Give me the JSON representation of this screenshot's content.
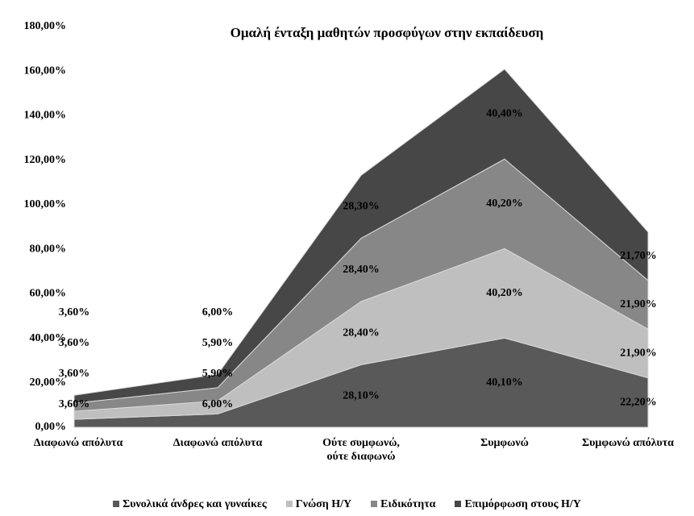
{
  "chart_data": {
    "type": "area",
    "title": "Ομαλή ένταξη μαθητών προσφύγων στην εκπαίδευση",
    "categories": [
      "Διαφωνώ απόλυτα",
      "Διαφωνώ απόλυτα",
      "Ούτε συμφωνώ, ούτε διαφωνώ",
      "Συμφωνώ",
      "Συμφωνώ απόλυτα"
    ],
    "stacked": true,
    "series": [
      {
        "name": "Συνολικά άνδρες και γυναίκες",
        "color": "#595959",
        "values": [
          3.6,
          6.0,
          28.1,
          40.1,
          22.2
        ],
        "value_labels": [
          "3,60%",
          "6,00%",
          "28,10%",
          "40,10%",
          "22,20%"
        ]
      },
      {
        "name": "Γνώση Η/Υ",
        "color": "#bfbfbf",
        "values": [
          3.6,
          5.9,
          28.4,
          40.2,
          21.9
        ],
        "value_labels": [
          "3,60%",
          "5,90%",
          "28,40%",
          "40,20%",
          "21,90%"
        ]
      },
      {
        "name": "Ειδικότητα",
        "color": "#878787",
        "values": [
          3.6,
          5.9,
          28.4,
          40.2,
          21.9
        ],
        "value_labels": [
          "3,60%",
          "5,90%",
          "28,40%",
          "40,20%",
          "21,90%"
        ]
      },
      {
        "name": "Επιμόρφωση στους Η/Υ",
        "color": "#474747",
        "values": [
          3.6,
          6.0,
          28.3,
          40.4,
          21.7
        ],
        "value_labels": [
          "3,60%",
          "6,00%",
          "28,30%",
          "40,40%",
          "21,70%"
        ]
      }
    ],
    "ylim": [
      0,
      180
    ],
    "yticks": [
      {
        "value": 0,
        "label": "0,00%"
      },
      {
        "value": 20,
        "label": "20,00%"
      },
      {
        "value": 40,
        "label": "40,00%"
      },
      {
        "value": 60,
        "label": "60,00%"
      },
      {
        "value": 80,
        "label": "80,00%"
      },
      {
        "value": 100,
        "label": "100,00%"
      },
      {
        "value": 120,
        "label": "120,00%"
      },
      {
        "value": 140,
        "label": "140,00%"
      },
      {
        "value": 160,
        "label": "160,00%"
      },
      {
        "value": 180,
        "label": "180,00%"
      }
    ],
    "legend": "bottom"
  }
}
